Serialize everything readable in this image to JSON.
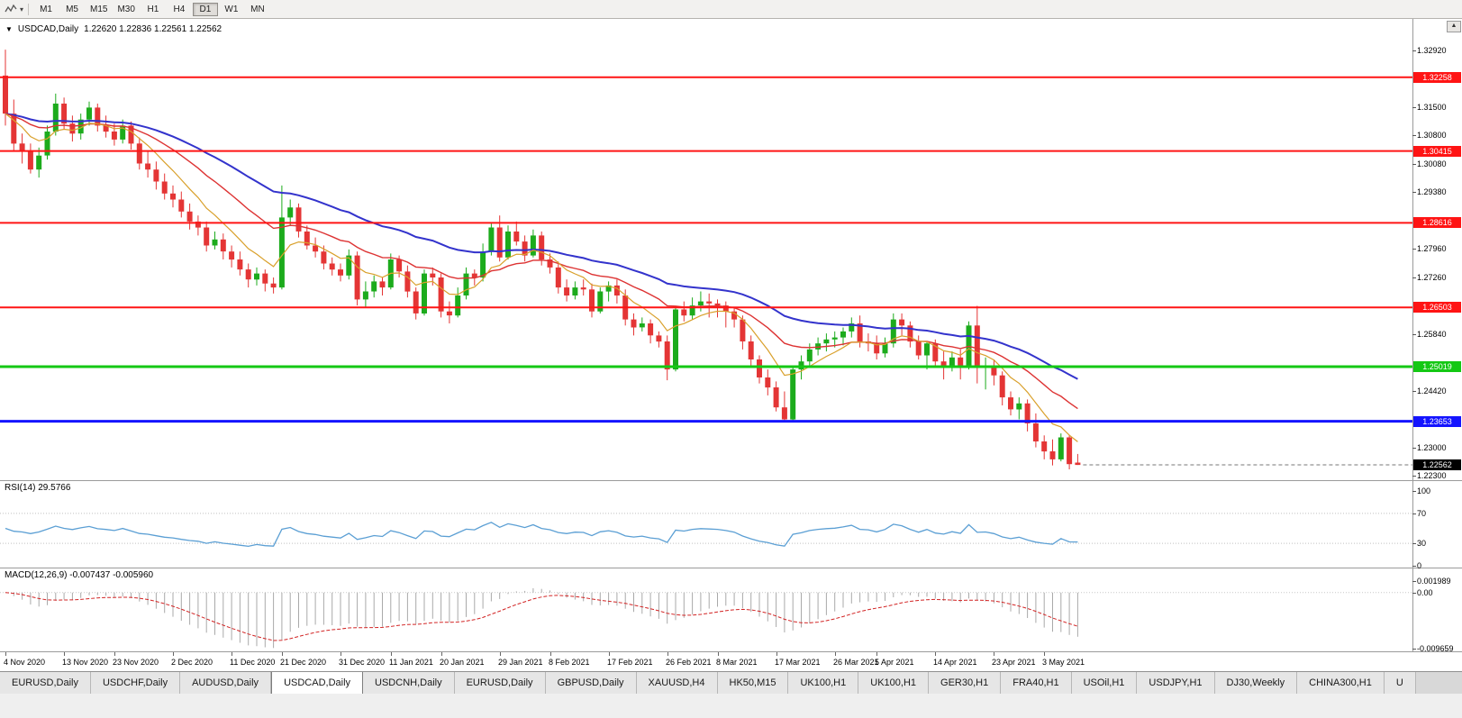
{
  "icons": {
    "toolbar_caret": "▾",
    "symbol_caret": "▼",
    "scroll_up": "▲"
  },
  "toolbar": {
    "timeframes": [
      {
        "label": "M1",
        "active": false
      },
      {
        "label": "M5",
        "active": false
      },
      {
        "label": "M15",
        "active": false
      },
      {
        "label": "M30",
        "active": false
      },
      {
        "label": "H1",
        "active": false
      },
      {
        "label": "H4",
        "active": false
      },
      {
        "label": "D1",
        "active": true
      },
      {
        "label": "W1",
        "active": false
      },
      {
        "label": "MN",
        "active": false
      }
    ]
  },
  "chart": {
    "title_symbol": "USDCAD,Daily",
    "title_ohlc": "1.22620 1.22836 1.22561 1.22562"
  },
  "rsi_panel": {
    "label": "RSI(14) 29.5766",
    "scale": [
      "100",
      "70",
      "30",
      "0"
    ]
  },
  "macd_panel": {
    "label": "MACD(12,26,9) -0.007437 -0.005960",
    "scale": [
      "0.001989",
      "0.00",
      "-0.009659"
    ]
  },
  "price_scale": {
    "ticks": [
      "1.32920",
      "1.31500",
      "1.30800",
      "1.30080",
      "1.29380",
      "1.27960",
      "1.27260",
      "1.25840",
      "1.24420",
      "1.23000",
      "1.22300"
    ],
    "line_labels": [
      {
        "value": "1.32258",
        "bg": "#ff1414"
      },
      {
        "value": "1.30415",
        "bg": "#ff1414"
      },
      {
        "value": "1.28616",
        "bg": "#ff1414"
      },
      {
        "value": "1.26503",
        "bg": "#ff1414"
      },
      {
        "value": "1.25019",
        "bg": "#14c814"
      },
      {
        "value": "1.23653",
        "bg": "#1414ff"
      },
      {
        "value": "1.22562",
        "bg": "#000000"
      }
    ]
  },
  "tabs": [
    {
      "label": "EURUSD,Daily",
      "active": false
    },
    {
      "label": "USDCHF,Daily",
      "active": false
    },
    {
      "label": "AUDUSD,Daily",
      "active": false
    },
    {
      "label": "USDCAD,Daily",
      "active": true
    },
    {
      "label": "USDCNH,Daily",
      "active": false
    },
    {
      "label": "EURUSD,Daily",
      "active": false
    },
    {
      "label": "GBPUSD,Daily",
      "active": false
    },
    {
      "label": "XAUUSD,H4",
      "active": false
    },
    {
      "label": "HK50,M15",
      "active": false
    },
    {
      "label": "UK100,H1",
      "active": false
    },
    {
      "label": "UK100,H1",
      "active": false
    },
    {
      "label": "GER30,H1",
      "active": false
    },
    {
      "label": "FRA40,H1",
      "active": false
    },
    {
      "label": "USOil,H1",
      "active": false
    },
    {
      "label": "USDJPY,H1",
      "active": false
    },
    {
      "label": "DJ30,Weekly",
      "active": false
    },
    {
      "label": "CHINA300,H1",
      "active": false
    },
    {
      "label": "U",
      "active": false
    }
  ],
  "chart_data": {
    "type": "candlestick",
    "symbol": "USDCAD",
    "timeframe": "Daily",
    "current_price": 1.22562,
    "ohlc_current": {
      "open": 1.2262,
      "high": 1.22836,
      "low": 1.22561,
      "close": 1.22562
    },
    "price_axis": {
      "min": 1.2218,
      "max": 1.3374
    },
    "colors": {
      "up": "#1cab1c",
      "down": "#e43535",
      "rsi": "#5b9fd4",
      "macd_hist": "#a9a9a9",
      "macd_signal": "#d22424"
    },
    "hlines": [
      {
        "price": 1.32258,
        "color": "#ff1414",
        "width": 2
      },
      {
        "price": 1.30415,
        "color": "#ff1414",
        "width": 2
      },
      {
        "price": 1.28616,
        "color": "#ff1414",
        "width": 2
      },
      {
        "price": 1.26503,
        "color": "#ff1414",
        "width": 2
      },
      {
        "price": 1.25019,
        "color": "#14c814",
        "width": 3
      },
      {
        "price": 1.23653,
        "color": "#1414ff",
        "width": 3
      }
    ],
    "moving_averages": [
      {
        "name": "ma-slow-blue",
        "period": 40,
        "color": "#3333cc",
        "width": 2
      },
      {
        "name": "ma-mid-red",
        "period": 20,
        "color": "#dd3333",
        "width": 1.4
      },
      {
        "name": "ma-fast-orange",
        "period": 8,
        "color": "#d9a02b",
        "width": 1.2
      }
    ],
    "indicators": {
      "rsi": {
        "period": 14,
        "current": 29.5766,
        "levels": [
          70,
          30
        ]
      },
      "macd": {
        "fast": 12,
        "slow": 26,
        "signal_period": 9,
        "current_main": -0.007437,
        "current_signal": -0.00596,
        "axis_max": 0.001989,
        "axis_min": -0.009659
      }
    },
    "date_labels": [
      {
        "label": "4 Nov 2020",
        "idx": 0
      },
      {
        "label": "13 Nov 2020",
        "idx": 7
      },
      {
        "label": "23 Nov 2020",
        "idx": 13
      },
      {
        "label": "2 Dec 2020",
        "idx": 20
      },
      {
        "label": "11 Dec 2020",
        "idx": 27
      },
      {
        "label": "21 Dec 2020",
        "idx": 33
      },
      {
        "label": "31 Dec 2020",
        "idx": 40
      },
      {
        "label": "11 Jan 2021",
        "idx": 46
      },
      {
        "label": "20 Jan 2021",
        "idx": 52
      },
      {
        "label": "29 Jan 2021",
        "idx": 59
      },
      {
        "label": "8 Feb 2021",
        "idx": 65
      },
      {
        "label": "17 Feb 2021",
        "idx": 72
      },
      {
        "label": "26 Feb 2021",
        "idx": 79
      },
      {
        "label": "8 Mar 2021",
        "idx": 85
      },
      {
        "label": "17 Mar 2021",
        "idx": 92
      },
      {
        "label": "26 Mar 2021",
        "idx": 99
      },
      {
        "label": "5 Apr 2021",
        "idx": 104
      },
      {
        "label": "14 Apr 2021",
        "idx": 111
      },
      {
        "label": "23 Apr 2021",
        "idx": 118
      },
      {
        "label": "3 May 2021",
        "idx": 124
      }
    ],
    "candles": [
      [
        1.323,
        1.3295,
        1.3105,
        1.3135
      ],
      [
        1.3135,
        1.317,
        1.304,
        1.306
      ],
      [
        1.306,
        1.3085,
        1.301,
        1.304
      ],
      [
        1.304,
        1.306,
        1.2985,
        1.2995
      ],
      [
        1.2995,
        1.305,
        1.2975,
        1.303
      ],
      [
        1.303,
        1.3105,
        1.302,
        1.309
      ],
      [
        1.309,
        1.3185,
        1.308,
        1.316
      ],
      [
        1.316,
        1.3175,
        1.3095,
        1.311
      ],
      [
        1.311,
        1.313,
        1.3065,
        1.3085
      ],
      [
        1.3085,
        1.3135,
        1.307,
        1.312
      ],
      [
        1.312,
        1.3165,
        1.3105,
        1.315
      ],
      [
        1.315,
        1.316,
        1.309,
        1.3105
      ],
      [
        1.3105,
        1.313,
        1.3075,
        1.309
      ],
      [
        1.309,
        1.311,
        1.3055,
        1.307
      ],
      [
        1.307,
        1.312,
        1.306,
        1.3105
      ],
      [
        1.3105,
        1.3115,
        1.3045,
        1.306
      ],
      [
        1.306,
        1.3075,
        1.2995,
        1.301
      ],
      [
        1.301,
        1.304,
        1.2975,
        1.2995
      ],
      [
        1.2995,
        1.3015,
        1.2945,
        1.2965
      ],
      [
        1.2965,
        1.2985,
        1.292,
        1.2935
      ],
      [
        1.2935,
        1.2955,
        1.29,
        1.292
      ],
      [
        1.292,
        1.294,
        1.2875,
        1.289
      ],
      [
        1.289,
        1.291,
        1.2845,
        1.2865
      ],
      [
        1.2865,
        1.288,
        1.283,
        1.285
      ],
      [
        1.285,
        1.2865,
        1.279,
        1.2805
      ],
      [
        1.2805,
        1.284,
        1.2795,
        1.282
      ],
      [
        1.282,
        1.2835,
        1.277,
        1.279
      ],
      [
        1.279,
        1.2805,
        1.275,
        1.277
      ],
      [
        1.277,
        1.279,
        1.273,
        1.2745
      ],
      [
        1.2745,
        1.276,
        1.27,
        1.272
      ],
      [
        1.272,
        1.275,
        1.2705,
        1.2735
      ],
      [
        1.2735,
        1.2745,
        1.269,
        1.271
      ],
      [
        1.271,
        1.2725,
        1.2685,
        1.27
      ],
      [
        1.27,
        1.2955,
        1.2695,
        1.2875
      ],
      [
        1.2875,
        1.292,
        1.2855,
        1.29
      ],
      [
        1.29,
        1.291,
        1.2825,
        1.284
      ],
      [
        1.284,
        1.2855,
        1.2795,
        1.2805
      ],
      [
        1.2805,
        1.2825,
        1.2775,
        1.279
      ],
      [
        1.279,
        1.2805,
        1.2745,
        1.276
      ],
      [
        1.276,
        1.2775,
        1.273,
        1.2745
      ],
      [
        1.2745,
        1.276,
        1.2715,
        1.273
      ],
      [
        1.273,
        1.2795,
        1.272,
        1.278
      ],
      [
        1.278,
        1.279,
        1.2655,
        1.267
      ],
      [
        1.267,
        1.2715,
        1.265,
        1.269
      ],
      [
        1.269,
        1.273,
        1.2675,
        1.2715
      ],
      [
        1.2715,
        1.2725,
        1.268,
        1.27
      ],
      [
        1.27,
        1.2785,
        1.2695,
        1.277
      ],
      [
        1.277,
        1.278,
        1.2725,
        1.274
      ],
      [
        1.274,
        1.2755,
        1.2675,
        1.269
      ],
      [
        1.269,
        1.27,
        1.262,
        1.2635
      ],
      [
        1.2635,
        1.2745,
        1.263,
        1.2735
      ],
      [
        1.2735,
        1.275,
        1.2705,
        1.2725
      ],
      [
        1.2725,
        1.2735,
        1.2625,
        1.264
      ],
      [
        1.264,
        1.2665,
        1.261,
        1.263
      ],
      [
        1.263,
        1.27,
        1.2625,
        1.268
      ],
      [
        1.268,
        1.275,
        1.267,
        1.2735
      ],
      [
        1.2735,
        1.2745,
        1.2705,
        1.2725
      ],
      [
        1.2725,
        1.281,
        1.2715,
        1.279
      ],
      [
        1.279,
        1.286,
        1.278,
        1.285
      ],
      [
        1.285,
        1.288,
        1.2765,
        1.2775
      ],
      [
        1.2775,
        1.2855,
        1.277,
        1.284
      ],
      [
        1.284,
        1.2865,
        1.2805,
        1.2815
      ],
      [
        1.2815,
        1.283,
        1.2765,
        1.278
      ],
      [
        1.278,
        1.2845,
        1.2775,
        1.283
      ],
      [
        1.283,
        1.284,
        1.2755,
        1.277
      ],
      [
        1.277,
        1.2785,
        1.2735,
        1.275
      ],
      [
        1.275,
        1.2765,
        1.2685,
        1.27
      ],
      [
        1.27,
        1.272,
        1.2665,
        1.268
      ],
      [
        1.268,
        1.2715,
        1.267,
        1.27
      ],
      [
        1.27,
        1.272,
        1.268,
        1.2695
      ],
      [
        1.2695,
        1.271,
        1.2625,
        1.264
      ],
      [
        1.264,
        1.27,
        1.2635,
        1.269
      ],
      [
        1.269,
        1.2715,
        1.2665,
        1.2705
      ],
      [
        1.2705,
        1.272,
        1.266,
        1.268
      ],
      [
        1.268,
        1.2695,
        1.2605,
        1.262
      ],
      [
        1.262,
        1.2635,
        1.258,
        1.26
      ],
      [
        1.26,
        1.2625,
        1.259,
        1.261
      ],
      [
        1.261,
        1.262,
        1.256,
        1.258
      ],
      [
        1.258,
        1.259,
        1.255,
        1.2565
      ],
      [
        1.2565,
        1.258,
        1.2468,
        1.2495
      ],
      [
        1.2495,
        1.265,
        1.249,
        1.2645
      ],
      [
        1.2645,
        1.2665,
        1.2615,
        1.263
      ],
      [
        1.263,
        1.2675,
        1.262,
        1.2655
      ],
      [
        1.2655,
        1.269,
        1.264,
        1.2665
      ],
      [
        1.2665,
        1.2685,
        1.2625,
        1.266
      ],
      [
        1.266,
        1.267,
        1.2625,
        1.2655
      ],
      [
        1.2655,
        1.2665,
        1.26,
        1.264
      ],
      [
        1.264,
        1.265,
        1.26,
        1.262
      ],
      [
        1.262,
        1.263,
        1.2545,
        1.2565
      ],
      [
        1.2565,
        1.258,
        1.25,
        1.252
      ],
      [
        1.252,
        1.253,
        1.246,
        1.2475
      ],
      [
        1.2475,
        1.2495,
        1.243,
        1.245
      ],
      [
        1.245,
        1.2465,
        1.239,
        1.24
      ],
      [
        1.24,
        1.244,
        1.2365,
        1.237
      ],
      [
        1.237,
        1.25,
        1.2365,
        1.2495
      ],
      [
        1.2495,
        1.253,
        1.247,
        1.2515
      ],
      [
        1.2515,
        1.256,
        1.2505,
        1.2545
      ],
      [
        1.2545,
        1.2575,
        1.253,
        1.256
      ],
      [
        1.256,
        1.2585,
        1.254,
        1.257
      ],
      [
        1.257,
        1.259,
        1.255,
        1.2575
      ],
      [
        1.2575,
        1.26,
        1.2555,
        1.259
      ],
      [
        1.259,
        1.2625,
        1.2575,
        1.261
      ],
      [
        1.261,
        1.263,
        1.255,
        1.2565
      ],
      [
        1.2565,
        1.2585,
        1.254,
        1.256
      ],
      [
        1.256,
        1.258,
        1.252,
        1.2535
      ],
      [
        1.2535,
        1.2575,
        1.2525,
        1.256
      ],
      [
        1.256,
        1.2635,
        1.255,
        1.262
      ],
      [
        1.262,
        1.2635,
        1.258,
        1.2605
      ],
      [
        1.2605,
        1.2615,
        1.255,
        1.2565
      ],
      [
        1.2565,
        1.258,
        1.252,
        1.253
      ],
      [
        1.253,
        1.2565,
        1.2495,
        1.256
      ],
      [
        1.256,
        1.257,
        1.25,
        1.2515
      ],
      [
        1.2515,
        1.254,
        1.247,
        1.25
      ],
      [
        1.25,
        1.254,
        1.249,
        1.2525
      ],
      [
        1.2525,
        1.2545,
        1.247,
        1.2505
      ],
      [
        1.2505,
        1.2615,
        1.2495,
        1.2605
      ],
      [
        1.2605,
        1.2654,
        1.246,
        1.25
      ],
      [
        1.25,
        1.2525,
        1.2445,
        1.2505
      ],
      [
        1.2505,
        1.252,
        1.2455,
        1.248
      ],
      [
        1.248,
        1.249,
        1.2405,
        1.2425
      ],
      [
        1.2425,
        1.244,
        1.238,
        1.2395
      ],
      [
        1.2395,
        1.2425,
        1.237,
        1.241
      ],
      [
        1.241,
        1.242,
        1.234,
        1.236
      ],
      [
        1.236,
        1.2385,
        1.23,
        1.2315
      ],
      [
        1.2315,
        1.233,
        1.227,
        1.229
      ],
      [
        1.229,
        1.232,
        1.2255,
        1.227
      ],
      [
        1.227,
        1.2335,
        1.2265,
        1.2325
      ],
      [
        1.2325,
        1.233,
        1.2245,
        1.2258
      ],
      [
        1.2262,
        1.22836,
        1.22561,
        1.22562
      ]
    ]
  }
}
